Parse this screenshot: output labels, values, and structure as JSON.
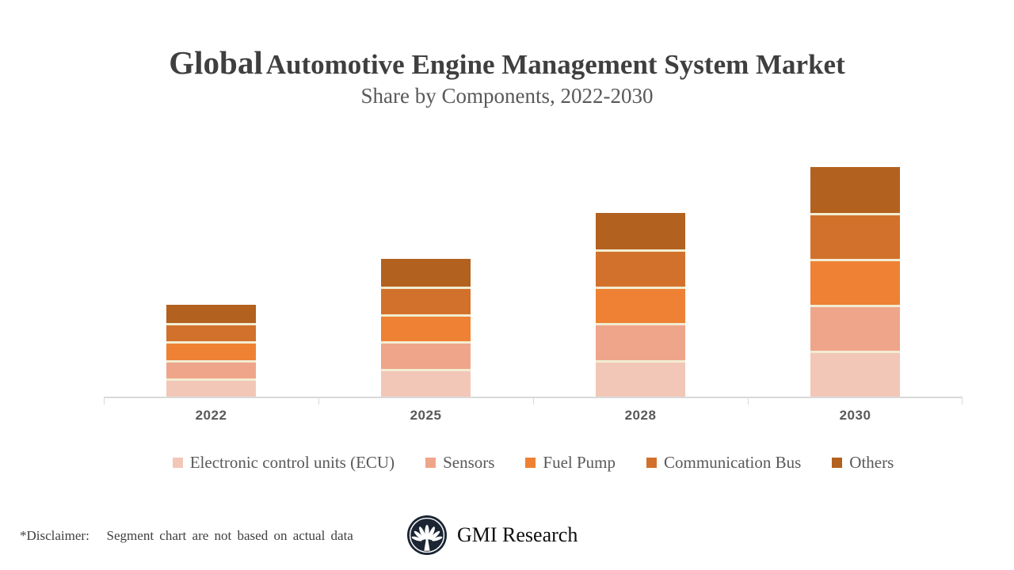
{
  "header": {
    "title_emphasis": "Global",
    "title_rest": "Automotive Engine Management System Market",
    "subtitle": "Share by Components, 2022-2030"
  },
  "chart_data": {
    "type": "bar",
    "stacked": true,
    "title": "Global Automotive Engine Management System Market",
    "subtitle": "Share by Components, 2022-2030",
    "categories": [
      "2022",
      "2025",
      "2028",
      "2030"
    ],
    "series": [
      {
        "name": "Electronic control units (ECU)",
        "color": "#F2C7B7",
        "values": [
          4,
          6,
          8,
          10
        ]
      },
      {
        "name": "Sensors",
        "color": "#EFA58A",
        "values": [
          4,
          6,
          8,
          10
        ]
      },
      {
        "name": "Fuel Pump",
        "color": "#EE8133",
        "values": [
          4,
          6,
          8,
          10
        ]
      },
      {
        "name": "Communication Bus",
        "color": "#D2712C",
        "values": [
          4,
          6,
          8,
          10
        ]
      },
      {
        "name": "Others",
        "color": "#B2611F",
        "values": [
          4,
          6,
          8,
          10
        ]
      }
    ],
    "category_totals": [
      20,
      30,
      40,
      50
    ],
    "xlabel": "",
    "ylabel": "",
    "ylim": [
      0,
      55
    ],
    "y_axis_visible": false,
    "gridlines": false,
    "legend_position": "bottom",
    "segment_separator_color": "#F2ECD2",
    "axis_line_color": "#D9D9D9"
  },
  "footer": {
    "disclaimer": "*Disclaimer:   Segment chart are not based on actual data",
    "brand_name": "GMI Research"
  },
  "colors": {
    "title_text": "#3F3F3F",
    "subtitle_text": "#595959",
    "axis_label_text": "#595959",
    "legend_text": "#595959",
    "logo_navy": "#1B2533"
  }
}
